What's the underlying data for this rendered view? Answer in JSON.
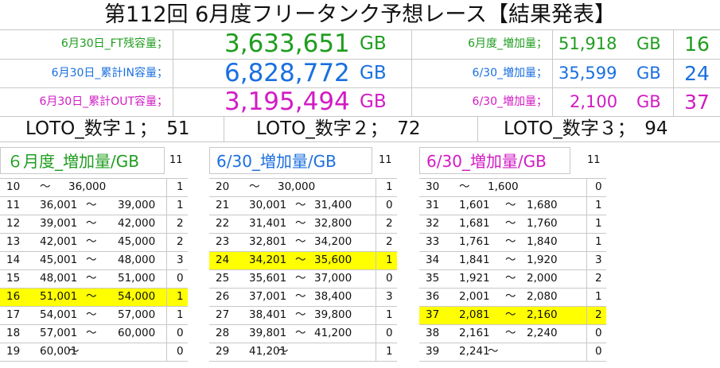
{
  "title": "第112回 6月度フリータンク予想レース【結果発表】",
  "colors": {
    "green": "#1f9d1f",
    "blue": "#1a6fe0",
    "magenta": "#d21bc4",
    "highlight": "#ffff00"
  },
  "summary": [
    {
      "label": "6月30日_FT残容量；",
      "value": "3,633,651",
      "unit": "GB",
      "label2": "6月度_増加量；",
      "value2": "51,918",
      "unit2": "GB",
      "count": "16"
    },
    {
      "label": "6月30日_累計IN容量；",
      "value": "6,828,772",
      "unit": "GB",
      "label2": "6/30_増加量；",
      "value2": "35,599",
      "unit2": "GB",
      "count": "24"
    },
    {
      "label": "6月30日_累計OUT容量；",
      "value": "3,195,494",
      "unit": "GB",
      "label2": "6/30_増加量；",
      "value2": "2,100",
      "unit2": "GB",
      "count": "37"
    }
  ],
  "loto": [
    "LOTO_数字１；　51",
    "LOTO_数字２；　72",
    "LOTO_数字３；　94"
  ],
  "tables": [
    {
      "header": "６月度_増加量/GB",
      "total": "11",
      "rows": [
        {
          "num": "10",
          "from": "～",
          "mid": "36,000",
          "to": "",
          "count": "1"
        },
        {
          "num": "11",
          "from": "36,001",
          "mid": "～",
          "to": "39,000",
          "count": "1"
        },
        {
          "num": "12",
          "from": "39,001",
          "mid": "～",
          "to": "42,000",
          "count": "2"
        },
        {
          "num": "13",
          "from": "42,001",
          "mid": "～",
          "to": "45,000",
          "count": "2"
        },
        {
          "num": "14",
          "from": "45,001",
          "mid": "～",
          "to": "48,000",
          "count": "3"
        },
        {
          "num": "15",
          "from": "48,001",
          "mid": "～",
          "to": "51,000",
          "count": "0"
        },
        {
          "num": "16",
          "from": "51,001",
          "mid": "～",
          "to": "54,000",
          "count": "1",
          "highlight": true
        },
        {
          "num": "17",
          "from": "54,001",
          "mid": "～",
          "to": "57,000",
          "count": "1"
        },
        {
          "num": "18",
          "from": "57,001",
          "mid": "～",
          "to": "60,000",
          "count": "0"
        },
        {
          "num": "19",
          "from": "60,001",
          "mid": "～",
          "to": "",
          "count": "0"
        }
      ]
    },
    {
      "header": "6/30_増加量/GB",
      "total": "11",
      "rows": [
        {
          "num": "20",
          "from": "～",
          "mid": "30,000",
          "to": "",
          "count": "1"
        },
        {
          "num": "21",
          "from": "30,001",
          "mid": "～",
          "to": "31,400",
          "count": "0"
        },
        {
          "num": "22",
          "from": "31,401",
          "mid": "～",
          "to": "32,800",
          "count": "2"
        },
        {
          "num": "23",
          "from": "32,801",
          "mid": "～",
          "to": "34,200",
          "count": "2"
        },
        {
          "num": "24",
          "from": "34,201",
          "mid": "～",
          "to": "35,600",
          "count": "1",
          "highlight": true
        },
        {
          "num": "25",
          "from": "35,601",
          "mid": "～",
          "to": "37,000",
          "count": "0"
        },
        {
          "num": "26",
          "from": "37,001",
          "mid": "～",
          "to": "38,400",
          "count": "3"
        },
        {
          "num": "27",
          "from": "38,401",
          "mid": "～",
          "to": "39,800",
          "count": "1"
        },
        {
          "num": "28",
          "from": "39,801",
          "mid": "～",
          "to": "41,200",
          "count": "0"
        },
        {
          "num": "29",
          "from": "41,201",
          "mid": "～",
          "to": "",
          "count": "1"
        }
      ]
    },
    {
      "header": "6/30_増加量/GB",
      "total": "11",
      "rows": [
        {
          "num": "30",
          "from": "～",
          "mid": "1,600",
          "to": "",
          "count": "0"
        },
        {
          "num": "31",
          "from": "1,601",
          "mid": "～",
          "to": "1,680",
          "count": "1"
        },
        {
          "num": "32",
          "from": "1,681",
          "mid": "～",
          "to": "1,760",
          "count": "1"
        },
        {
          "num": "33",
          "from": "1,761",
          "mid": "～",
          "to": "1,840",
          "count": "1"
        },
        {
          "num": "34",
          "from": "1,841",
          "mid": "～",
          "to": "1,920",
          "count": "3"
        },
        {
          "num": "35",
          "from": "1,921",
          "mid": "～",
          "to": "2,000",
          "count": "2"
        },
        {
          "num": "36",
          "from": "2,001",
          "mid": "～",
          "to": "2,080",
          "count": "1"
        },
        {
          "num": "37",
          "from": "2,081",
          "mid": "～",
          "to": "2,160",
          "count": "2",
          "highlight": true
        },
        {
          "num": "38",
          "from": "2,161",
          "mid": "～",
          "to": "2,240",
          "count": "0"
        },
        {
          "num": "39",
          "from": "2,241",
          "mid": "～",
          "to": "",
          "count": "0"
        }
      ]
    }
  ]
}
